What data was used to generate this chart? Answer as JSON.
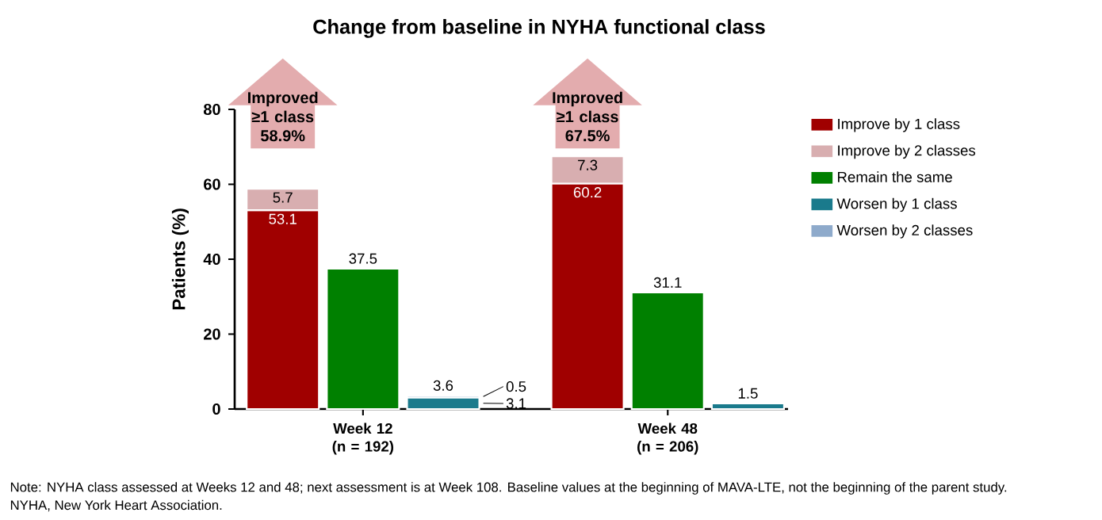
{
  "chart_data": {
    "type": "bar",
    "title": "Change from baseline in NYHA functional class",
    "categories": [
      null,
      "Week 12 (n = 192)",
      null,
      null,
      "Week 48 (n = 206)",
      null
    ],
    "series": [
      {
        "name": "Improve by 1 class",
        "color": "#a00000",
        "values": [
          53.1,
          null,
          null,
          60.2,
          null,
          null
        ]
      },
      {
        "name": "Improve by 2 classes",
        "color": "#d8aeb0",
        "values": [
          5.7,
          null,
          null,
          7.3,
          null,
          null
        ]
      },
      {
        "name": "Remain the same",
        "color": "#008000",
        "values": [
          null,
          37.5,
          null,
          null,
          31.1,
          null
        ]
      },
      {
        "name": "Worsen by 1 class",
        "color": "#1a7a8c",
        "values": [
          null,
          null,
          3.1,
          null,
          null,
          1.5
        ]
      },
      {
        "name": "Worsen by 2 classes",
        "color": "#8eaacb",
        "values": [
          null,
          null,
          0.5,
          null,
          null,
          null
        ]
      }
    ],
    "stacked": true,
    "data_labels": true,
    "totals": [
      null,
      null,
      "3.6",
      null,
      null,
      null
    ],
    "ylabel": "Patients (%)",
    "ylim": [
      0,
      80
    ],
    "yticks": [
      0,
      20,
      40,
      60,
      80
    ],
    "legend": "top right",
    "annotations": [
      "**Improved ≥1 class 58.9%**",
      "**Improved ≥1 class 67.5%**",
      "Note: NYHA class assessed at Weeks 12 and 48; next assessment is at Week 108. Baseline values at the beginning of MAVA-LTE, not the beginning of the parent study.",
      "NYHA, New York Heart Association."
    ]
  }
}
